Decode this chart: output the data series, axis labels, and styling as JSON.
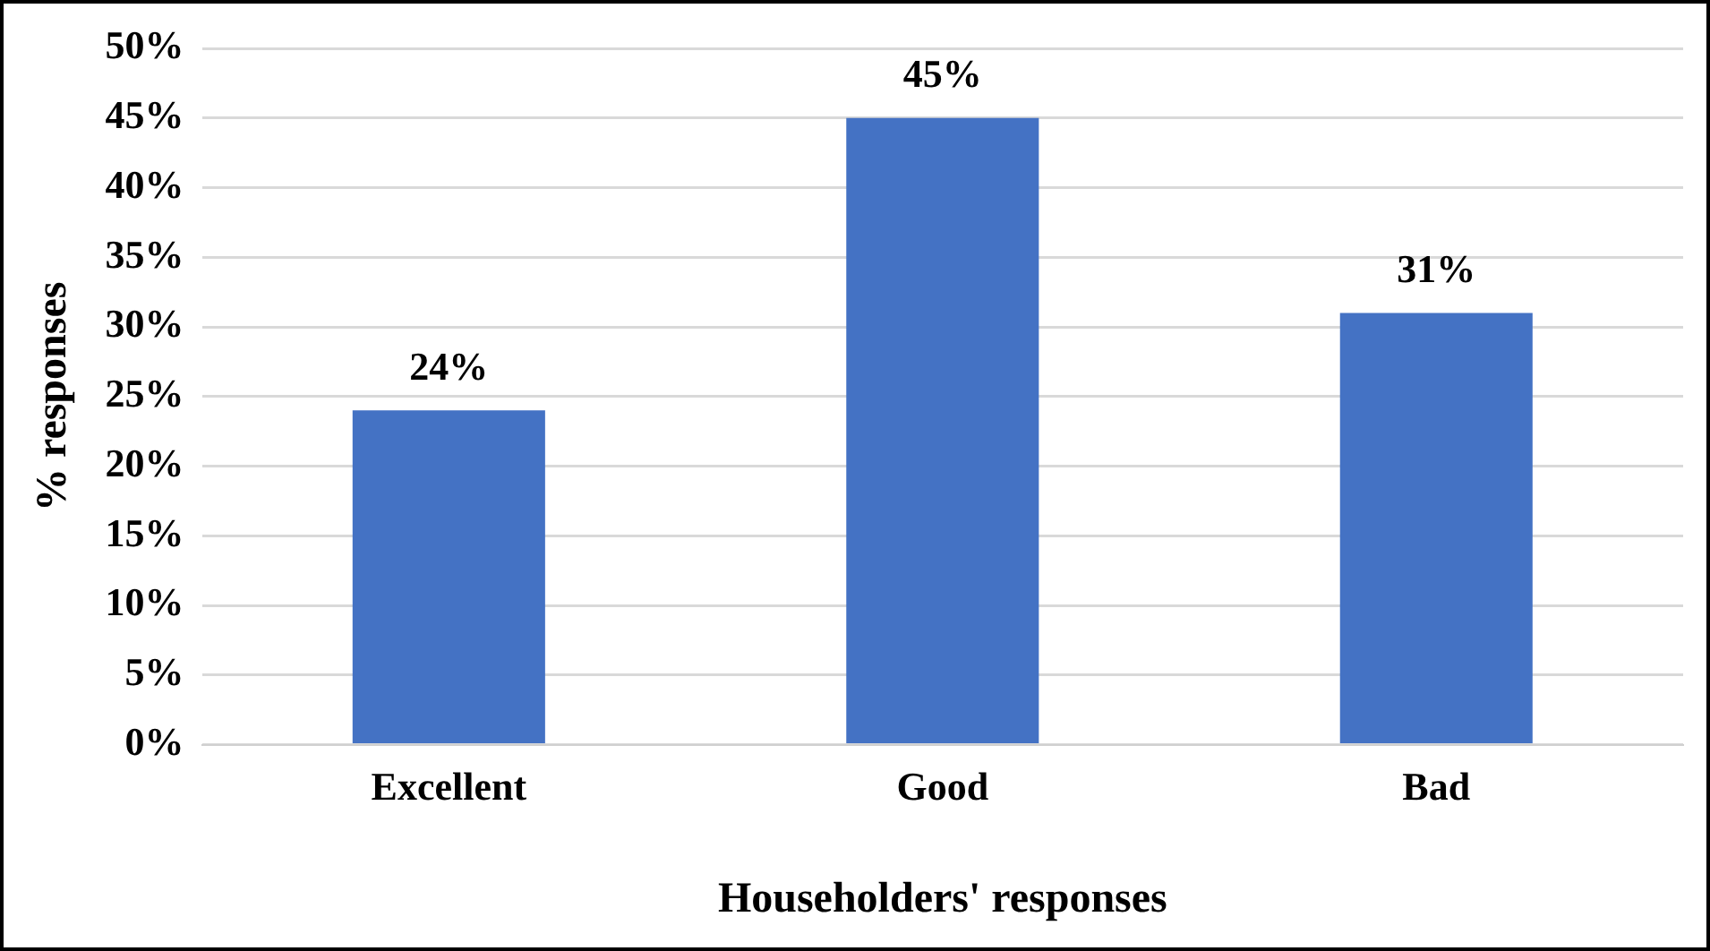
{
  "chart_data": {
    "type": "bar",
    "xlabel": "Householders' responses",
    "ylabel": "% responses",
    "categories": [
      "Excellent",
      "Good",
      "Bad"
    ],
    "values": [
      24,
      45,
      31
    ],
    "color": "#4472c4",
    "value_labels": [
      "24%",
      "45%",
      "31%"
    ],
    "ylim": [
      0,
      50
    ],
    "yticks": [
      {
        "value": 0,
        "label": "0%"
      },
      {
        "value": 5,
        "label": "5%"
      },
      {
        "value": 10,
        "label": "10%"
      },
      {
        "value": 15,
        "label": "15%"
      },
      {
        "value": 20,
        "label": "20%"
      },
      {
        "value": 25,
        "label": "25%"
      },
      {
        "value": 30,
        "label": "30%"
      },
      {
        "value": 35,
        "label": "35%"
      },
      {
        "value": 40,
        "label": "40%"
      },
      {
        "value": 45,
        "label": "45%"
      },
      {
        "value": 50,
        "label": "50%"
      }
    ],
    "grid": "y",
    "legend": false
  }
}
